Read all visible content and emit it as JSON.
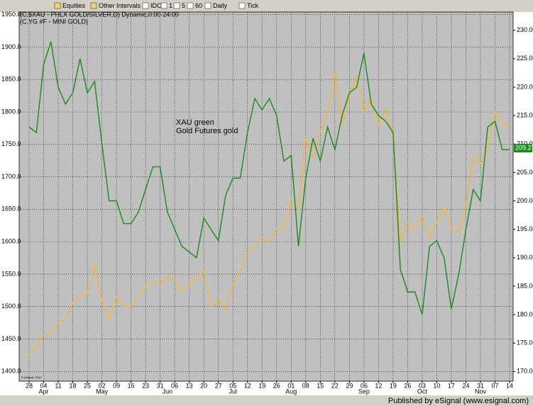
{
  "toolbar": [
    "Equities",
    "Other Intervals",
    "IDC",
    "1",
    "5",
    "60",
    "Daily",
    "Tick"
  ],
  "footer": "Published by eSignal (www.esignal.com)",
  "chart_data": {
    "type": "line",
    "headers": [
      "(C,$XAU - PHLX GOLD/SILVER,D) Dynamic,0:00-24:00",
      "(C,YG #F - MINI GOLD)"
    ],
    "annotations": [
      "XAU green",
      "Gold Futures gold"
    ],
    "watermark": "© eSignal, 2010",
    "categories": [
      "28",
      null,
      "04",
      null,
      "11",
      null,
      "18",
      null,
      "25",
      null,
      "02",
      null,
      "09",
      null,
      "16",
      null,
      "23",
      null,
      "31",
      null,
      "06",
      null,
      "13",
      null,
      "20",
      null,
      "27",
      null,
      "05",
      null,
      "12",
      null,
      "19",
      null,
      "26",
      null,
      "01",
      null,
      "08",
      null,
      "15",
      null,
      "22",
      null,
      "29",
      null,
      "06",
      null,
      "12",
      null,
      "19",
      null,
      "26",
      null,
      "03",
      null,
      "10",
      null,
      "17",
      null,
      "24",
      null,
      "31",
      null,
      "07",
      null,
      "14"
    ],
    "months": [
      "Apr",
      "May",
      "Jun",
      "Jul",
      "Aug",
      "Sep",
      "Oct",
      "Nov"
    ],
    "series": [
      {
        "name": "Gold Futures",
        "color": "#f4b731",
        "values": [
          1425,
          1440,
          1455,
          1460,
          1475,
          1480,
          1505,
          1515,
          1520,
          1565,
          1510,
          1480,
          1515,
          1500,
          1500,
          1515,
          1530,
          1540,
          1535,
          1545,
          1540,
          1525,
          1535,
          1545,
          1555,
          1500,
          1510,
          1495,
          1535,
          1555,
          1585,
          1590,
          1605,
          1600,
          1620,
          1620,
          1665,
          1650,
          1760,
          1730,
          1770,
          1800,
          1860,
          1780,
          1825,
          1855,
          1800,
          1820,
          1780,
          1805,
          1760,
          1600,
          1630,
          1620,
          1640,
          1605,
          1630,
          1655,
          1620,
          1615,
          1655,
          1730,
          1720,
          1745,
          1800,
          1785,
          1775
        ]
      },
      {
        "name": "XAU",
        "color": "#1a8a1a",
        "axis": "y2",
        "values": [
          213,
          212,
          224,
          228,
          220,
          217,
          219,
          225,
          219,
          221,
          210,
          200,
          200,
          196,
          196,
          198,
          202,
          206,
          206,
          198,
          195,
          192,
          191,
          190,
          197,
          195,
          193,
          201,
          204,
          204,
          212,
          218,
          216,
          218,
          215,
          207,
          208,
          192,
          204,
          211,
          207,
          213,
          209,
          215,
          219,
          220,
          226,
          217,
          215,
          214,
          212,
          188,
          184,
          184,
          180,
          192,
          193,
          190,
          181,
          187,
          195,
          202,
          200,
          213,
          214,
          209,
          209
        ],
        "last_value": {
          "value": 209.27,
          "label": "209.27"
        }
      }
    ],
    "ylim": [
      1385,
      1954
    ],
    "yticks": [
      {
        "value": 1400,
        "label": "1400.0"
      },
      {
        "value": 1450,
        "label": "1450.0"
      },
      {
        "value": 1500,
        "label": "1500.0"
      },
      {
        "value": 1550,
        "label": "1550.0"
      },
      {
        "value": 1600,
        "label": "1600.0"
      },
      {
        "value": 1650,
        "label": "1650.0"
      },
      {
        "value": 1700,
        "label": "1700.0"
      },
      {
        "value": 1750,
        "label": "1750.0"
      },
      {
        "value": 1800,
        "label": "1800.0"
      },
      {
        "value": 1850,
        "label": "1850.0"
      },
      {
        "value": 1900,
        "label": "1900.0"
      },
      {
        "value": 1950,
        "label": "1950.0"
      }
    ],
    "y2lim": [
      168.3,
      233.2
    ],
    "y2ticks": [
      {
        "value": 170,
        "label": "170.00"
      },
      {
        "value": 175,
        "label": "175.00"
      },
      {
        "value": 180,
        "label": "180.00"
      },
      {
        "value": 185,
        "label": "185.00"
      },
      {
        "value": 190,
        "label": "190.00"
      },
      {
        "value": 195,
        "label": "195.00"
      },
      {
        "value": 200,
        "label": "200.00"
      },
      {
        "value": 205,
        "label": "205.00"
      },
      {
        "value": 210,
        "label": "210.00"
      },
      {
        "value": 215,
        "label": "215.00"
      },
      {
        "value": 220,
        "label": "220.00"
      },
      {
        "value": 225,
        "label": "225.00"
      },
      {
        "value": 230,
        "label": "230.00"
      }
    ],
    "grid": true
  }
}
